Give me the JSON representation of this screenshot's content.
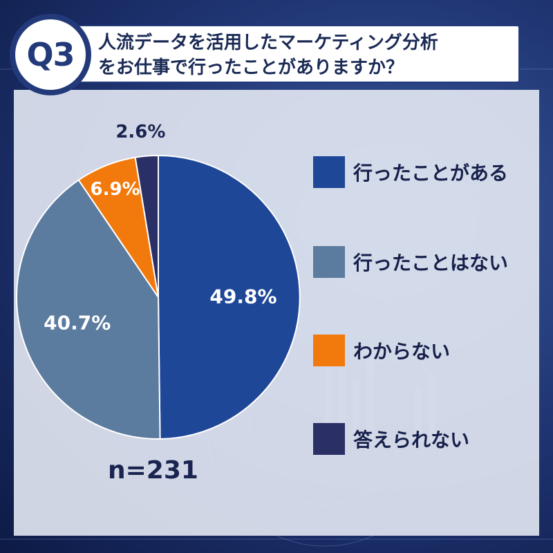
{
  "title": {
    "badge": "Q3",
    "line1": "人流データを活用したマーケティング分析",
    "line2": "をお仕事で行ったことがありますか？"
  },
  "colors": {
    "header_navy": "#233a7a",
    "panel": "#e4e9f3",
    "background": "#1e3370"
  },
  "chart_data": {
    "type": "pie",
    "start_angle_deg": 0,
    "direction": "clockwise",
    "slices": [
      {
        "label": "行ったことがある",
        "value": 49.8,
        "display": "49.8%",
        "color": "#1f4797"
      },
      {
        "label": "行ったことはない",
        "value": 40.7,
        "display": "40.7%",
        "color": "#5b7b9f"
      },
      {
        "label": "わからない",
        "value": 6.9,
        "display": "6.9%",
        "color": "#f27a0c"
      },
      {
        "label": "答えられない",
        "value": 2.6,
        "display": "2.6%",
        "color": "#2a2f66"
      }
    ],
    "legend_position": "right",
    "sample_size": "n=231"
  }
}
